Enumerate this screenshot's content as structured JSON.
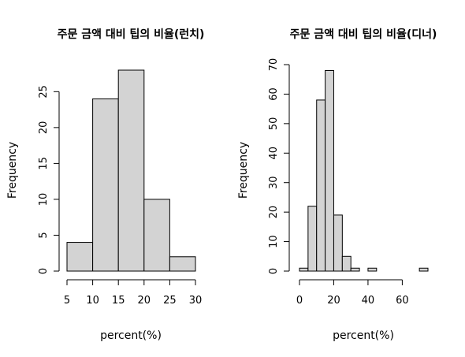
{
  "chart_data": [
    {
      "type": "bar",
      "subtype": "histogram",
      "title": "주문 금액 대비 팁의 비율(런치)",
      "xlabel": "percent(%)",
      "ylabel": "Frequency",
      "bin_edges": [
        5,
        10,
        15,
        20,
        25,
        30
      ],
      "values": [
        4,
        24,
        28,
        10,
        2
      ],
      "xticks": [
        5,
        10,
        15,
        20,
        25,
        30
      ],
      "yticks": [
        0,
        5,
        10,
        15,
        20,
        25
      ],
      "xlim": [
        5,
        30
      ],
      "ylim": [
        0,
        28
      ],
      "bar_color": "#d3d3d3"
    },
    {
      "type": "bar",
      "subtype": "histogram",
      "title": "주문 금액 대비 팁의 비율(디너)",
      "xlabel": "percent(%)",
      "ylabel": "Frequency",
      "bin_edges": [
        0,
        5,
        10,
        15,
        20,
        25,
        30,
        35,
        40,
        45,
        50,
        55,
        60,
        65,
        70,
        75
      ],
      "values": [
        1,
        22,
        58,
        68,
        19,
        5,
        1,
        0,
        1,
        0,
        0,
        0,
        0,
        0,
        1
      ],
      "xticks": [
        0,
        20,
        40,
        60
      ],
      "yticks": [
        0,
        10,
        20,
        30,
        40,
        50,
        60,
        70
      ],
      "xlim": [
        0,
        75
      ],
      "ylim": [
        0,
        70
      ],
      "bar_color": "#d3d3d3"
    }
  ]
}
